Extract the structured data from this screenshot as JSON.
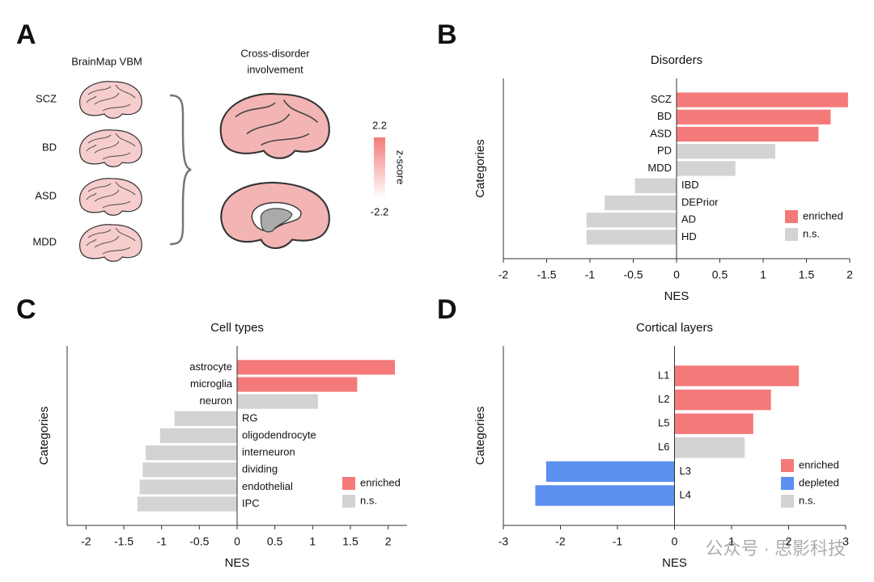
{
  "panel_a": {
    "label": "A",
    "left_title": "BrainMap VBM",
    "right_title": [
      "Cross-disorder",
      "involvement"
    ],
    "disorders": [
      "SCZ",
      "BD",
      "ASD",
      "MDD"
    ],
    "colorbar": {
      "max": 2.2,
      "min": -2.2,
      "label": "z-score"
    }
  },
  "watermark": "公众号 · 思影科技",
  "chart_data": [
    {
      "type": "hbar",
      "label": "B",
      "title": "Disorders",
      "xlabel": "NES",
      "ylabel": "Categories",
      "categories": [
        "SCZ",
        "BD",
        "ASD",
        "PD",
        "MDD",
        "IBD",
        "DEPrior",
        "AD",
        "HD"
      ],
      "series": [
        {
          "name": "enriched",
          "color": "#f47a7a",
          "values": [
            1.98,
            1.78,
            1.64,
            null,
            null,
            null,
            null,
            null,
            null
          ]
        },
        {
          "name": "n.s.",
          "color": "#d3d3d3",
          "values": [
            null,
            null,
            null,
            1.14,
            0.68,
            -0.48,
            -0.83,
            -1.04,
            -1.04
          ]
        }
      ],
      "xlim": [
        -2,
        2
      ],
      "xticks": [
        -2,
        -1.5,
        -1,
        -0.5,
        0,
        0.5,
        1,
        1.5,
        2
      ],
      "legend": "lower right"
    },
    {
      "type": "hbar",
      "label": "C",
      "title": "Cell types",
      "xlabel": "NES",
      "ylabel": "Categories",
      "categories": [
        "astrocyte",
        "microglia",
        "neuron",
        "RG",
        "oligodendrocyte",
        "interneuron",
        "dividing",
        "endothelial",
        "IPC"
      ],
      "series": [
        {
          "name": "enriched",
          "color": "#f47a7a",
          "values": [
            2.09,
            1.59,
            null,
            null,
            null,
            null,
            null,
            null,
            null
          ]
        },
        {
          "name": "n.s.",
          "color": "#d3d3d3",
          "values": [
            null,
            null,
            1.07,
            -0.83,
            -1.02,
            -1.21,
            -1.25,
            -1.29,
            -1.32
          ]
        }
      ],
      "xlim": [
        -2.25,
        2.25
      ],
      "xticks": [
        -2,
        -1.5,
        -1,
        -0.5,
        0,
        0.5,
        1,
        1.5,
        2
      ],
      "legend": "lower right"
    },
    {
      "type": "hbar",
      "label": "D",
      "title": "Cortical layers",
      "xlabel": "NES",
      "ylabel": "Categories",
      "categories": [
        "L1",
        "L2",
        "L5",
        "L6",
        "L3",
        "L4"
      ],
      "series": [
        {
          "name": "enriched",
          "color": "#f47a7a",
          "values": [
            2.18,
            1.69,
            1.38,
            null,
            null,
            null
          ]
        },
        {
          "name": "depleted",
          "color": "#5b8ff0",
          "values": [
            null,
            null,
            null,
            null,
            -2.25,
            -2.44
          ]
        },
        {
          "name": "n.s.",
          "color": "#d3d3d3",
          "values": [
            null,
            null,
            null,
            1.23,
            null,
            null
          ]
        }
      ],
      "xlim": [
        -3,
        3
      ],
      "xticks": [
        -3,
        -2,
        -1,
        0,
        1,
        2,
        3
      ],
      "legend": "lower right"
    }
  ]
}
